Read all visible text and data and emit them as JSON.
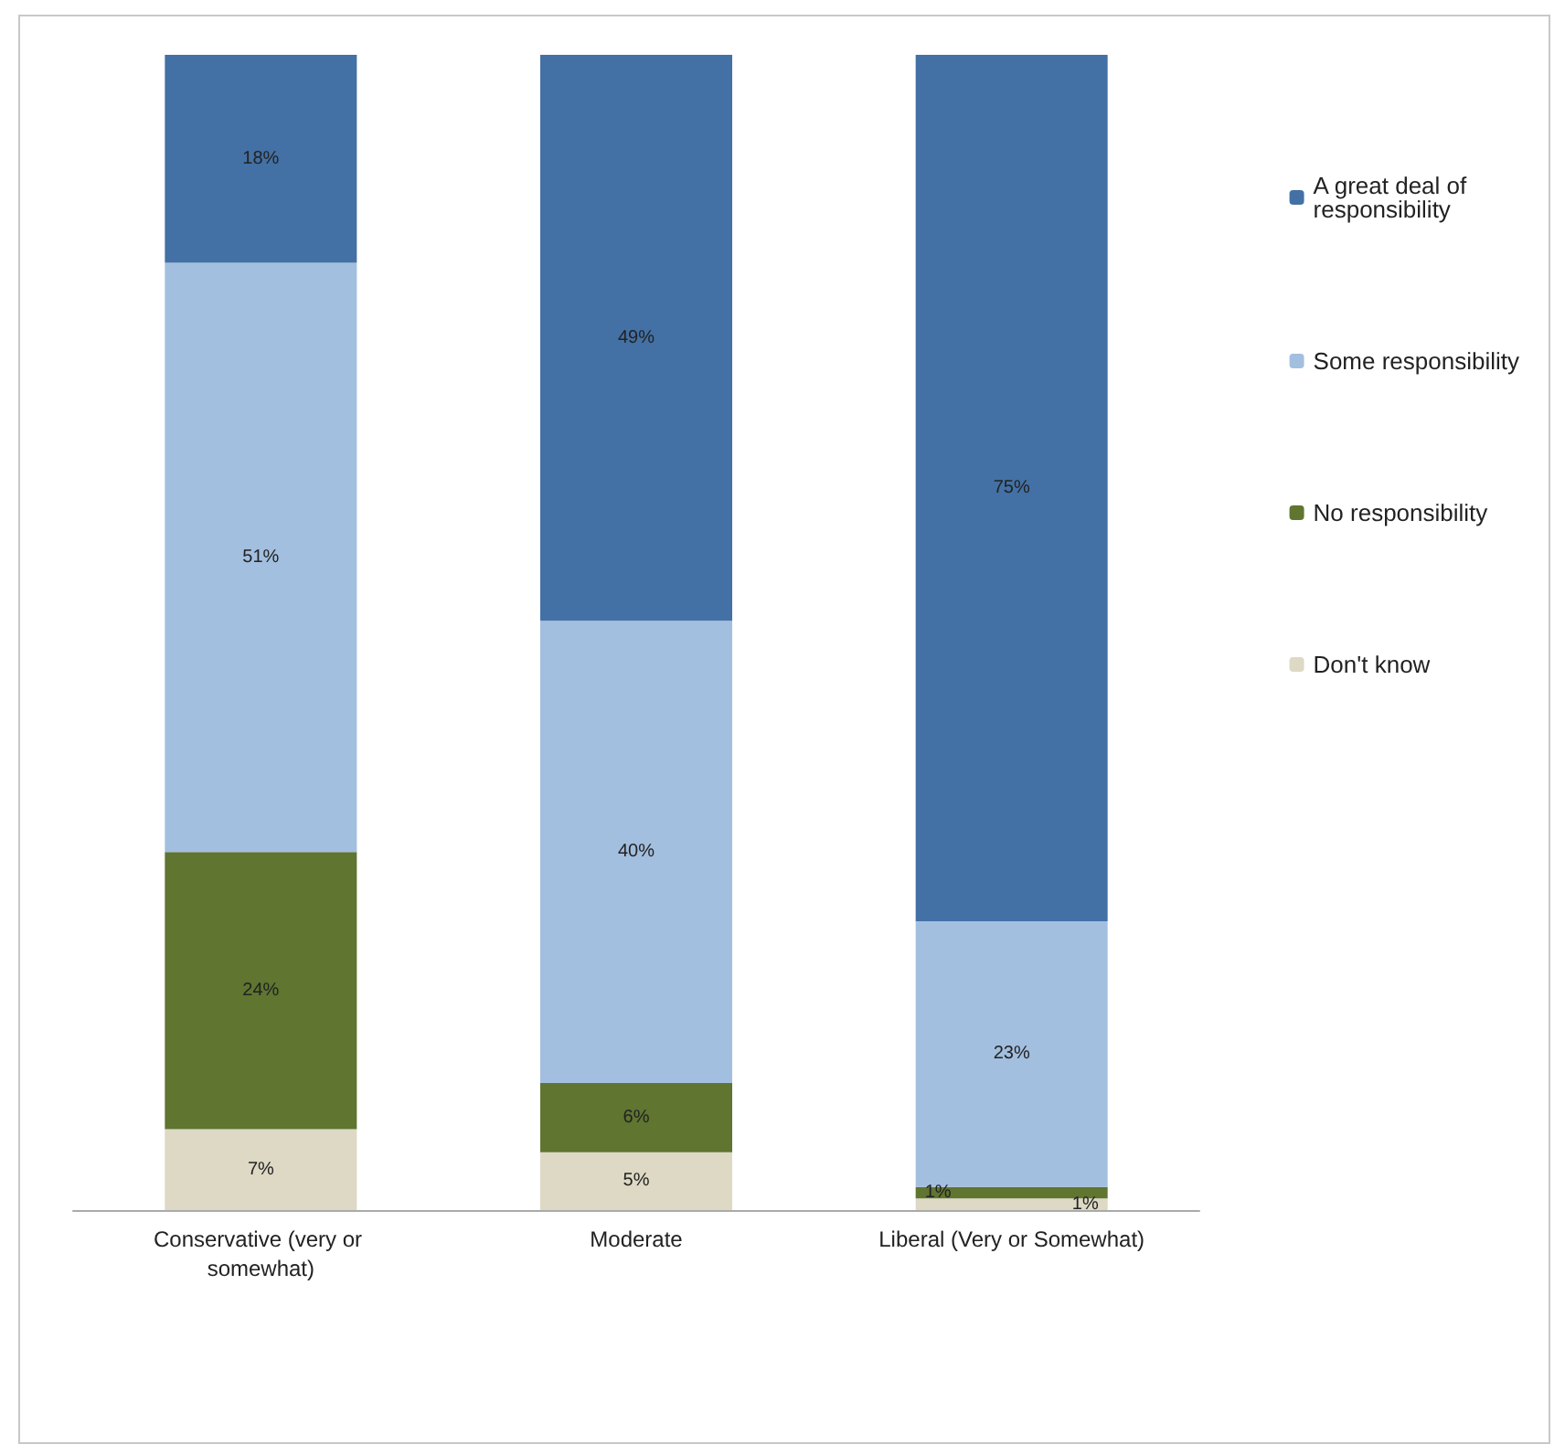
{
  "chart_data": {
    "type": "bar",
    "stacked": true,
    "categories": [
      "Conservative (very or somewhat)",
      "Moderate",
      "Liberal (Very or Somewhat)"
    ],
    "series": [
      {
        "name": "Don't know",
        "color": "#ddd9c4",
        "values": [
          7,
          5,
          1
        ],
        "value_labels": [
          "7%",
          "5%",
          "1%"
        ]
      },
      {
        "name": "No responsibility",
        "color": "#5f7530",
        "values": [
          24,
          6,
          1
        ],
        "value_labels": [
          "24%",
          "6%",
          "1%"
        ]
      },
      {
        "name": "Some responsibility",
        "color": "#a3bfdf",
        "values": [
          51,
          40,
          23
        ],
        "value_labels": [
          "51%",
          "40%",
          "23%"
        ]
      },
      {
        "name": "A great deal of responsibility",
        "color": "#4371a5",
        "values": [
          18,
          49,
          75
        ],
        "value_labels": [
          "18%",
          "49%",
          "75%"
        ]
      }
    ],
    "ylim": [
      0,
      100
    ],
    "tick_labels": "x",
    "legend": "right"
  }
}
